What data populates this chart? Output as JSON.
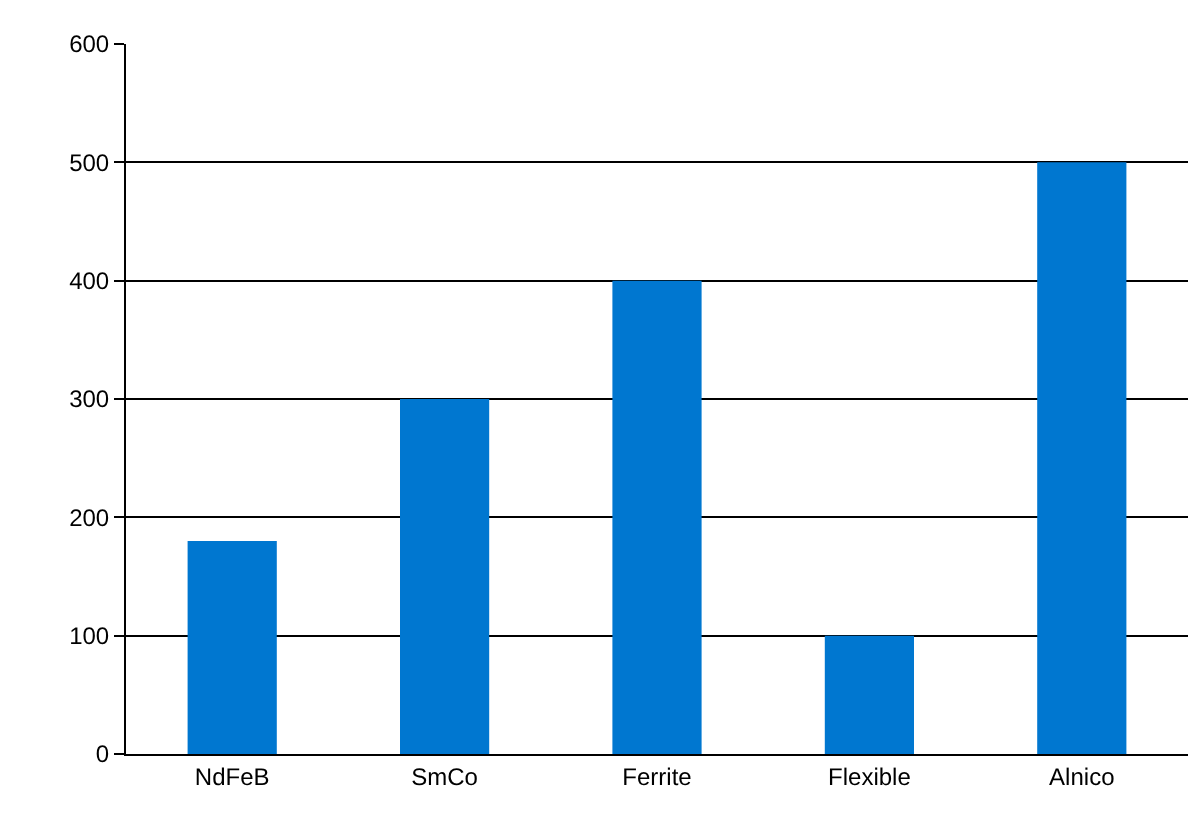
{
  "chart_data": {
    "type": "bar",
    "categories": [
      "NdFeB",
      "SmCo",
      "Ferrite",
      "Flexible",
      "Alnico"
    ],
    "values": [
      180,
      300,
      400,
      100,
      500
    ],
    "color": "#0077d0",
    "ylim": [
      0,
      600
    ],
    "yticks": [
      0,
      100,
      200,
      300,
      400,
      500,
      600
    ],
    "grid": "y",
    "legend": false
  }
}
